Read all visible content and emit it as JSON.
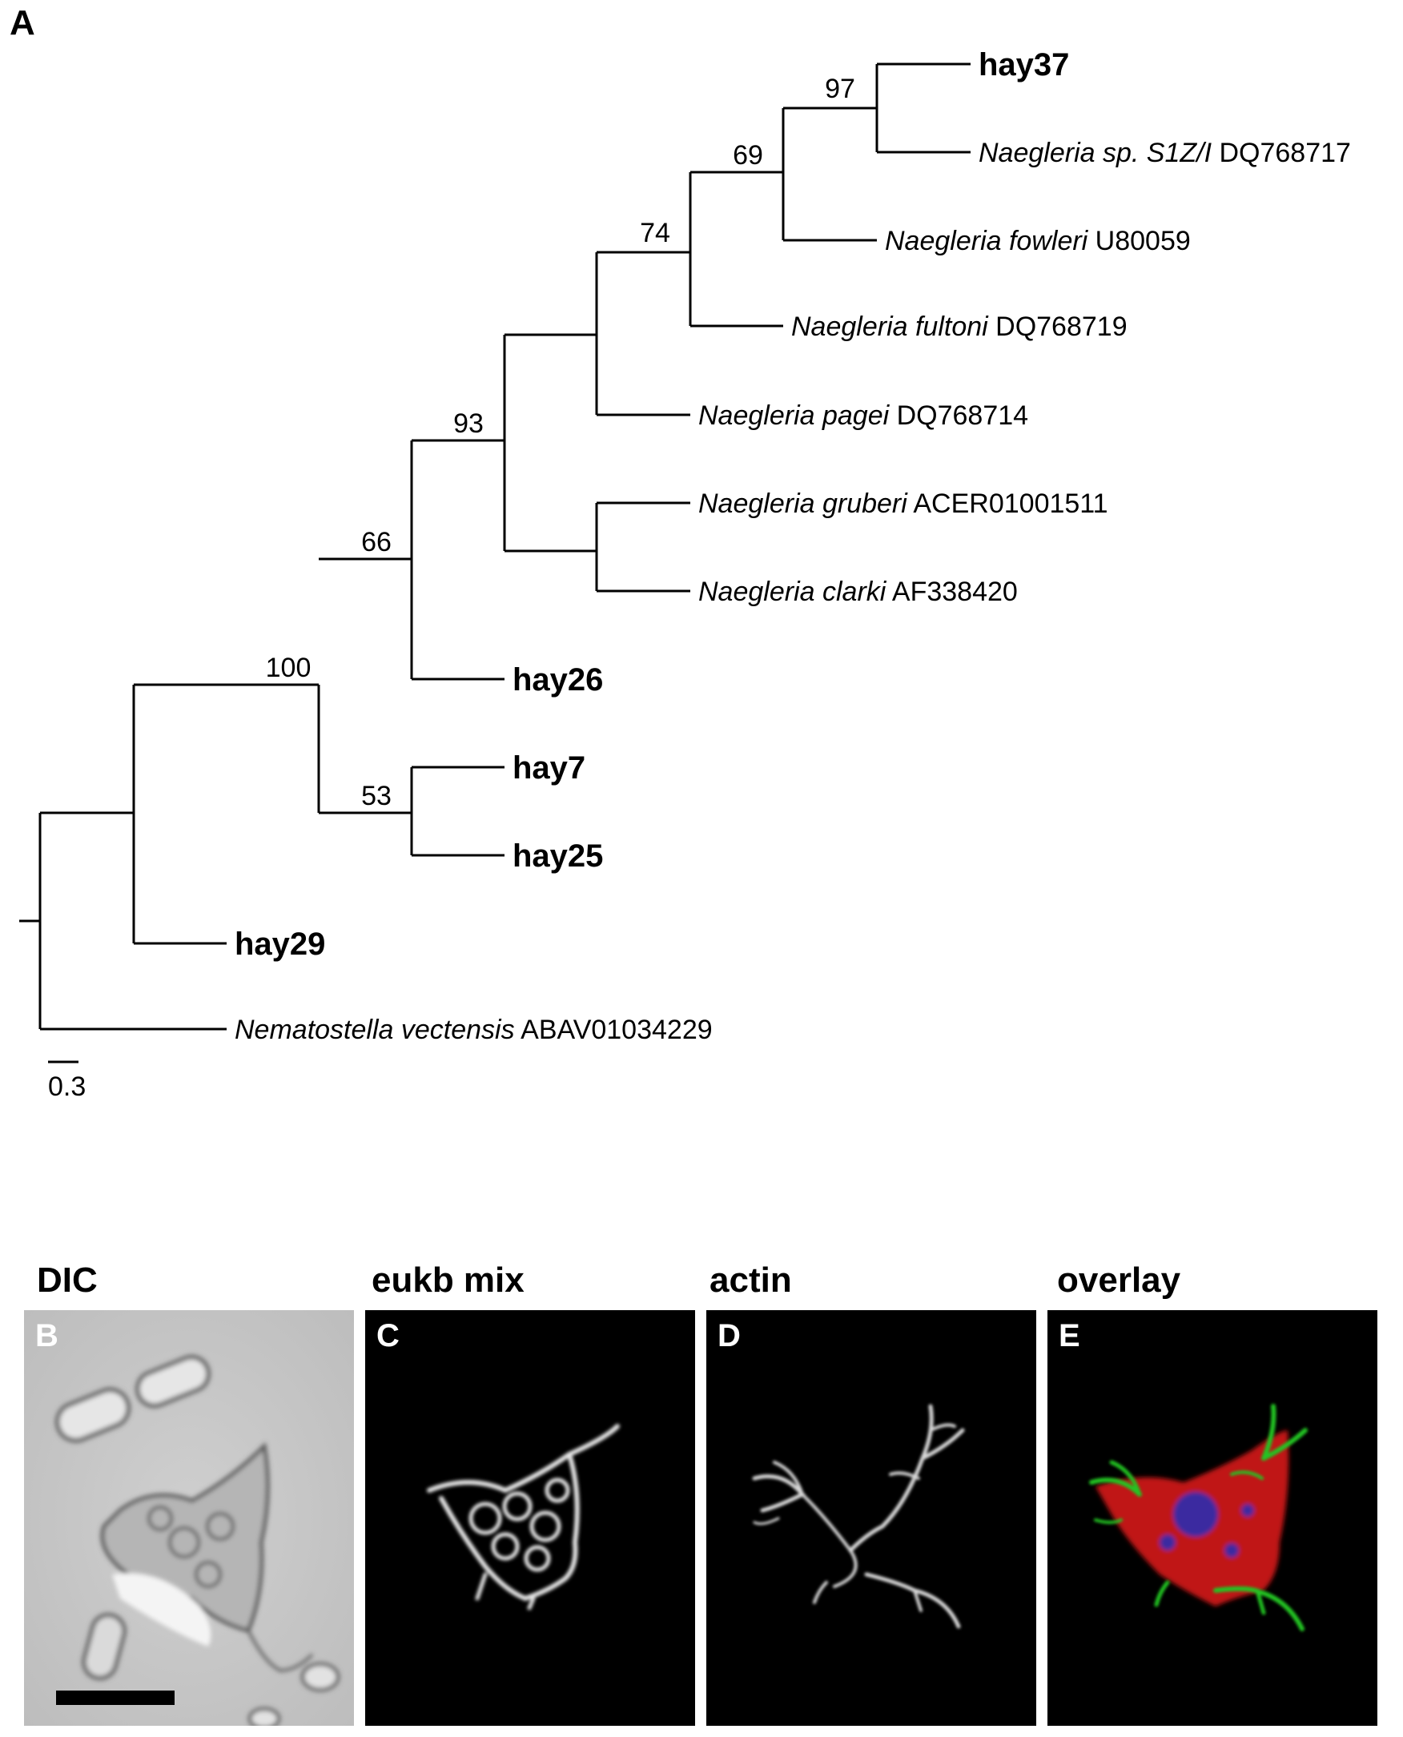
{
  "figure": {
    "panel_a_label": "A",
    "scale_bar_label": "0.3",
    "taxa": [
      {
        "id": "hay37",
        "name": "hay37",
        "acc": "",
        "bold": true,
        "italic": false
      },
      {
        "id": "ns",
        "name": "Naegleria sp. S1Z/I",
        "acc": " DQ768717",
        "bold": false,
        "italic": true
      },
      {
        "id": "nfow",
        "name": "Naegleria fowleri",
        "acc": " U80059",
        "bold": false,
        "italic": true
      },
      {
        "id": "nful",
        "name": "Naegleria fultoni",
        "acc": " DQ768719",
        "bold": false,
        "italic": true
      },
      {
        "id": "npag",
        "name": "Naegleria pagei",
        "acc": " DQ768714",
        "bold": false,
        "italic": true
      },
      {
        "id": "ngru",
        "name": "Naegleria gruberi",
        "acc": " ACER01001511",
        "bold": false,
        "italic": true
      },
      {
        "id": "ncla",
        "name": "Naegleria clarki",
        "acc": " AF338420",
        "bold": false,
        "italic": true
      },
      {
        "id": "hay26",
        "name": "hay26",
        "acc": "",
        "bold": true,
        "italic": false
      },
      {
        "id": "hay7",
        "name": "hay7",
        "acc": "",
        "bold": true,
        "italic": false
      },
      {
        "id": "hay25",
        "name": "hay25",
        "acc": "",
        "bold": true,
        "italic": false
      },
      {
        "id": "hay29",
        "name": "hay29",
        "acc": "",
        "bold": true,
        "italic": false
      },
      {
        "id": "nvec",
        "name": "Nematostella vectensis",
        "acc": " ABAV01034229",
        "bold": false,
        "italic": true
      }
    ],
    "bootstrap": [
      {
        "node": "n97",
        "value": "97"
      },
      {
        "node": "n69",
        "value": "69"
      },
      {
        "node": "n74",
        "value": "74"
      },
      {
        "node": "n93",
        "value": "93"
      },
      {
        "node": "n66",
        "value": "66"
      },
      {
        "node": "n100",
        "value": "100"
      },
      {
        "node": "n53",
        "value": "53"
      }
    ]
  },
  "panels": {
    "b": {
      "title": "DIC",
      "letter": "B"
    },
    "c": {
      "title": "eukb mix",
      "letter": "C"
    },
    "d": {
      "title": "actin",
      "letter": "D"
    },
    "e": {
      "title": "overlay",
      "letter": "E"
    }
  }
}
